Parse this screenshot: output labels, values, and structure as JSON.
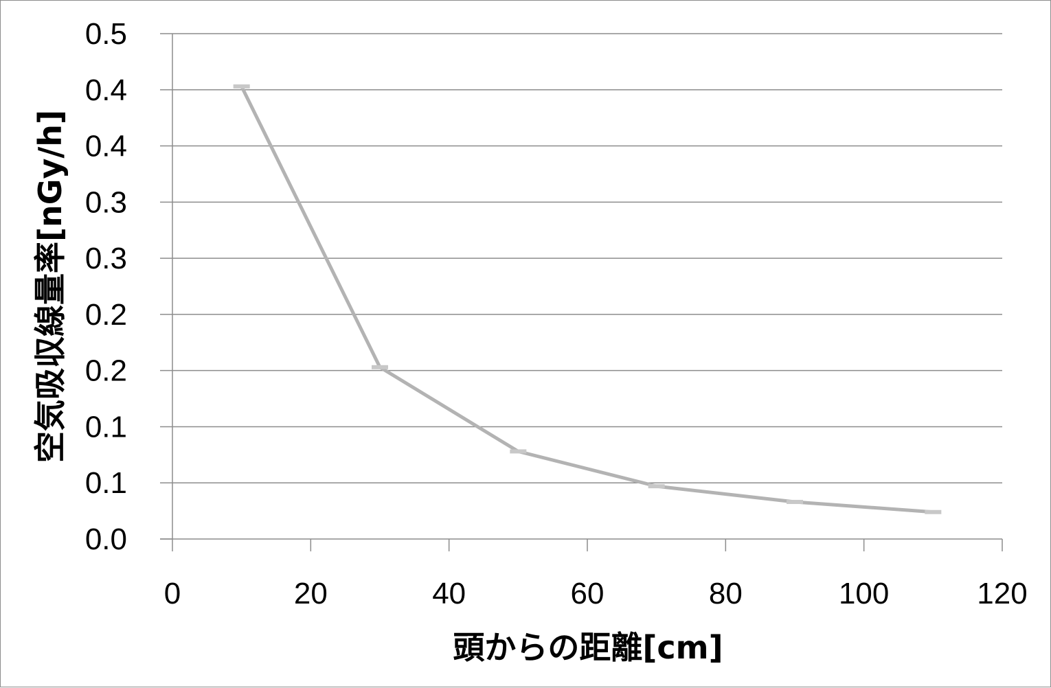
{
  "chart_data": {
    "type": "line",
    "xlabel": "頭からの距離[cm]",
    "ylabel": "空気吸収線量率[nGy/h]",
    "xlim": [
      0,
      120
    ],
    "ylim": [
      0,
      0.45
    ],
    "x_ticks": [
      "0",
      "20",
      "40",
      "60",
      "80",
      "100",
      "120"
    ],
    "y_ticks": [
      "0.0",
      "0.1",
      "0.1",
      "0.2",
      "0.2",
      "0.3",
      "0.3",
      "0.4",
      "0.4",
      "0.5"
    ],
    "grid": true,
    "legend": "none",
    "series": [
      {
        "color": "#b3b3b3",
        "x": [
          10,
          30,
          50,
          70,
          90,
          110
        ],
        "y": [
          0.403,
          0.153,
          0.078,
          0.047,
          0.033,
          0.024
        ]
      }
    ]
  }
}
